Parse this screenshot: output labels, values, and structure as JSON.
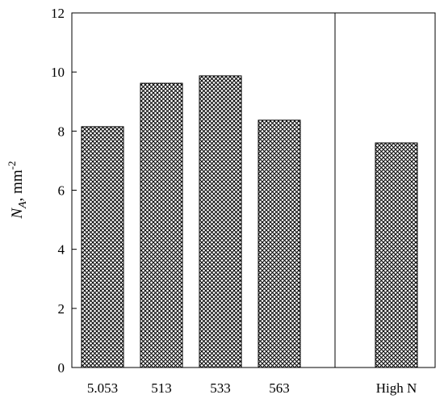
{
  "chart_data": {
    "type": "bar",
    "categories": [
      "5.053",
      "513",
      "533",
      "563",
      "High N"
    ],
    "values": [
      8.15,
      9.62,
      9.87,
      8.37,
      7.6
    ],
    "ylabel_main": "N",
    "ylabel_sub": "A",
    "ylabel_unit": ", mm",
    "ylabel_exp": "-2",
    "ylim": [
      0,
      12
    ],
    "yticks": [
      0,
      2,
      4,
      6,
      8,
      10,
      12
    ],
    "grid": false,
    "bar_fill": "crosshatch",
    "colors": {
      "bar_ink": "#000000",
      "background": "#ffffff"
    }
  }
}
